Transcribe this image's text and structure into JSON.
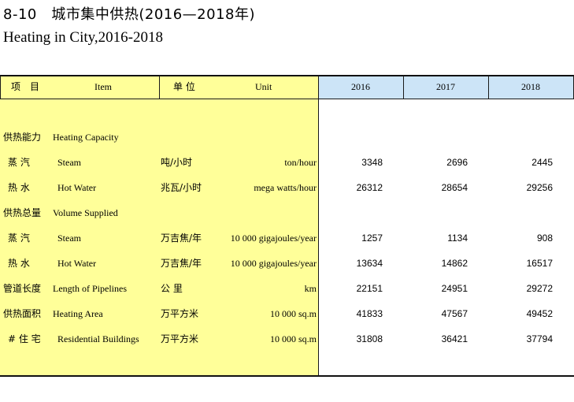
{
  "title": {
    "cn": "8-10　城市集中供热(2016—2018年)",
    "en": "Heating in City,2016-2018"
  },
  "header": {
    "item_cn": "项　目",
    "item_en": "Item",
    "unit_cn": "单 位",
    "unit_en": "Unit",
    "years": [
      "2016",
      "2017",
      "2018"
    ]
  },
  "rows": [
    {
      "cn": "供热能力",
      "en": "Heating Capacity",
      "unit_cn": "",
      "unit_en": "",
      "values": [
        "",
        "",
        ""
      ],
      "indent": false
    },
    {
      "cn": "蒸 汽",
      "en": "Steam",
      "unit_cn": "吨/小时",
      "unit_en": "ton/hour",
      "values": [
        "3348",
        "2696",
        "2445"
      ],
      "indent": true
    },
    {
      "cn": "热 水",
      "en": "Hot Water",
      "unit_cn": "兆瓦/小时",
      "unit_en": "mega watts/hour",
      "values": [
        "26312",
        "28654",
        "29256"
      ],
      "indent": true
    },
    {
      "cn": "供热总量",
      "en": "Volume Supplied",
      "unit_cn": "",
      "unit_en": "",
      "values": [
        "",
        "",
        ""
      ],
      "indent": false
    },
    {
      "cn": "蒸 汽",
      "en": "Steam",
      "unit_cn": "万吉焦/年",
      "unit_en": "10 000 gigajoules/year",
      "values": [
        "1257",
        "1134",
        "908"
      ],
      "indent": true
    },
    {
      "cn": "热 水",
      "en": "Hot Water",
      "unit_cn": "万吉焦/年",
      "unit_en": "10 000 gigajoules/year",
      "values": [
        "13634",
        "14862",
        "16517"
      ],
      "indent": true
    },
    {
      "cn": "管道长度",
      "en": "Length of Pipelines",
      "unit_cn": "公 里",
      "unit_en": "km",
      "values": [
        "22151",
        "24951",
        "29272"
      ],
      "indent": false
    },
    {
      "cn": "供热面积",
      "en": "Heating Area",
      "unit_cn": "万平方米",
      "unit_en": "10 000 sq.m",
      "values": [
        "41833",
        "47567",
        "49452"
      ],
      "indent": false
    },
    {
      "cn": "# 住 宅",
      "en": "Residential Buildings",
      "unit_cn": "万平方米",
      "unit_en": "10 000 sq.m",
      "values": [
        "31808",
        "36421",
        "37794"
      ],
      "indent": true
    }
  ]
}
